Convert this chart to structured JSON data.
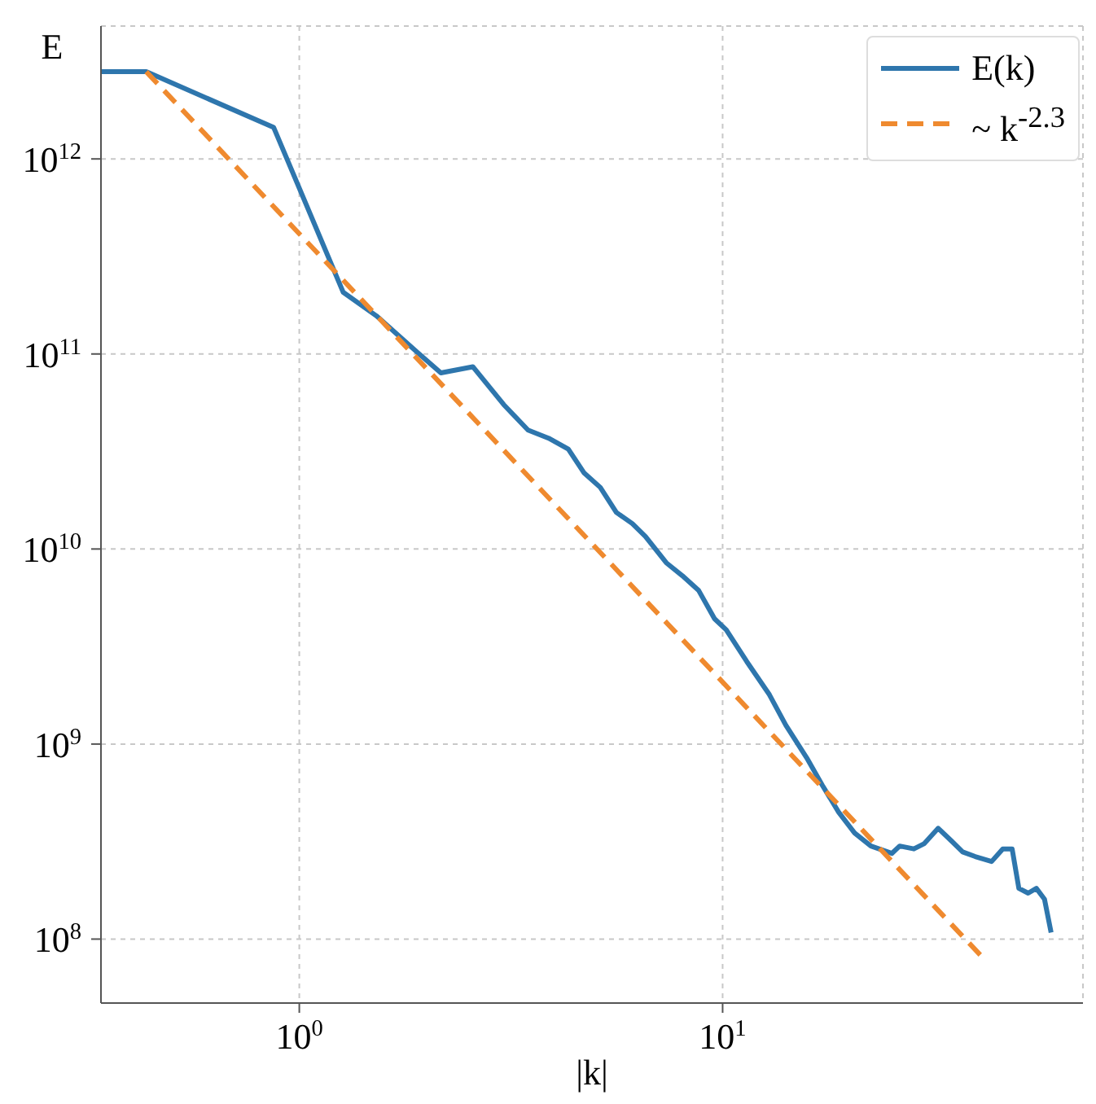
{
  "chart_data": {
    "type": "line",
    "xlabel": "|k|",
    "ylabel": "E",
    "log": "xy",
    "grid": true,
    "legend": "top right",
    "xlim": [
      0.34,
      71
    ],
    "ylim": [
      47000000.0,
      4800000000000.0
    ],
    "xticks": [
      {
        "value": 1,
        "label": "10$^{0}$"
      },
      {
        "value": 10,
        "label": "10$^{1}$"
      }
    ],
    "yticks": [
      {
        "value": 100000000.0,
        "label": "10$^{8}$"
      },
      {
        "value": 1000000000.0,
        "label": "10$^{9}$"
      },
      {
        "value": 10000000000.0,
        "label": "10$^{10}$"
      },
      {
        "value": 100000000000.0,
        "label": "10$^{11}$"
      },
      {
        "value": 1000000000000.0,
        "label": "10$^{12}$"
      }
    ],
    "series": [
      {
        "name": "E(k)",
        "color": "#2e76ad",
        "line_style": "solid",
        "x": [
          0.34,
          0.435,
          0.87,
          1.27,
          1.52,
          1.9,
          2.16,
          2.57,
          3.04,
          3.47,
          3.88,
          4.32,
          4.71,
          5.14,
          5.61,
          6.12,
          6.57,
          7.36,
          8.03,
          8.77,
          9.57,
          10.2,
          11.4,
          12.9,
          14.1,
          15.8,
          17.2,
          18.8,
          20.5,
          22.4,
          25.1,
          26.2,
          28.3,
          29.9,
          32.3,
          34.7,
          36.9,
          39.5,
          43.2,
          45.9,
          48.3,
          50.1,
          52.7,
          55.1,
          57.6,
          59.7
        ],
        "values": [
          2800000000000.0,
          2800000000000.0,
          1450000000000.0,
          207000000000.0,
          157000000000.0,
          102000000000.0,
          80000000000.0,
          86000000000.0,
          55000000000.0,
          40700000000.0,
          37000000000.0,
          32500000000.0,
          24500000000.0,
          20700000000.0,
          15400000000.0,
          13500000000.0,
          11600000000.0,
          8500000000.0,
          7300000000.0,
          6150000000.0,
          4390000000.0,
          3850000000.0,
          2650000000.0,
          1790000000.0,
          1250000000.0,
          850000000.0,
          615000000.0,
          447000000.0,
          350000000.0,
          300000000.0,
          275000000.0,
          300000000.0,
          290000000.0,
          308000000.0,
          370000000.0,
          319000000.0,
          280000000.0,
          265000000.0,
          250000000.0,
          290000000.0,
          290000000.0,
          182000000.0,
          172000000.0,
          182000000.0,
          160000000.0,
          108000000.0
        ]
      },
      {
        "name": "~ k$^{-2.3}$",
        "color": "#ef8a2f",
        "line_style": "dashed",
        "x": [
          0.435,
          40.6
        ],
        "values": [
          2800000000000.0,
          83000000.0
        ]
      }
    ]
  }
}
